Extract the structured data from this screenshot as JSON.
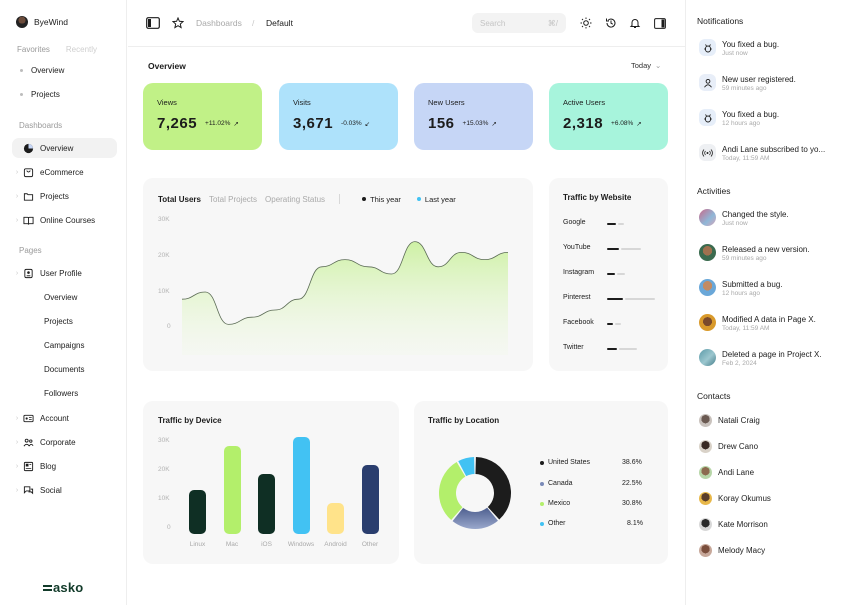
{
  "sidebar": {
    "brand": "ByeWind",
    "fav_tab_favorites": "Favorites",
    "fav_tab_recently": "Recently",
    "favorites": [
      "Overview",
      "Projects"
    ],
    "dashboards_title": "Dashboards",
    "dashboards": [
      "Overview",
      "eCommerce",
      "Projects",
      "Online Courses"
    ],
    "pages_title": "Pages",
    "user_profile": "User Profile",
    "user_profile_sub": [
      "Overview",
      "Projects",
      "Campaigns",
      "Documents",
      "Followers"
    ],
    "pages": [
      "Account",
      "Corporate",
      "Blog",
      "Social"
    ],
    "logo": "asko"
  },
  "header": {
    "crumb_root": "Dashboards",
    "crumb_sep": "/",
    "crumb_current": "Default",
    "search_placeholder": "Search",
    "search_shortcut": "⌘/"
  },
  "overview": {
    "title": "Overview",
    "range": "Today",
    "stats": [
      {
        "label": "Views",
        "value": "7,265",
        "change": "+11.02%",
        "color": "#c1f187"
      },
      {
        "label": "Visits",
        "value": "3,671",
        "change": "-0.03%",
        "color": "#aee2fb"
      },
      {
        "label": "New Users",
        "value": "156",
        "change": "+15.03%",
        "color": "#c6d6f6"
      },
      {
        "label": "Active Users",
        "value": "2,318",
        "change": "+6.08%",
        "color": "#a7f4dc"
      }
    ]
  },
  "total_users": {
    "tab_active": "Total Users",
    "tab_projects": "Total Projects",
    "tab_status": "Operating Status",
    "legend_this_year": "This year",
    "legend_last_year": "Last year",
    "y_ticks": [
      "30K",
      "20K",
      "10K",
      "0"
    ]
  },
  "traffic_website": {
    "title": "Traffic by Website",
    "sites": [
      "Google",
      "YouTube",
      "Instagram",
      "Pinterest",
      "Facebook",
      "Twitter"
    ]
  },
  "traffic_device": {
    "title": "Traffic by Device",
    "y_ticks": [
      "30K",
      "20K",
      "10K",
      "0"
    ]
  },
  "traffic_location": {
    "title": "Traffic by Location",
    "items": [
      {
        "name": "United States",
        "value": "38.6%",
        "color": "#1c1c1c"
      },
      {
        "name": "Canada",
        "value": "22.5%",
        "color": "#7a8ab8"
      },
      {
        "name": "Mexico",
        "value": "30.8%",
        "color": "#b3ef6b"
      },
      {
        "name": "Other",
        "value": "8.1%",
        "color": "#42c2f3"
      }
    ]
  },
  "chart_data": [
    {
      "type": "line",
      "title": "Total Users",
      "ylim": [
        0,
        30000
      ],
      "grid": false,
      "legend": "top",
      "series": [
        {
          "name": "This year",
          "values": [
            8000,
            10000,
            1000,
            3000,
            5000,
            8000,
            17000,
            19000,
            17000,
            15000,
            24000,
            17000,
            21000,
            19000,
            21000
          ]
        }
      ]
    },
    {
      "type": "bar",
      "title": "Traffic by Device",
      "categories": [
        "Linux",
        "Mac",
        "iOS",
        "Windows",
        "Android",
        "Other"
      ],
      "values": [
        14000,
        28000,
        19000,
        31000,
        10000,
        22000
      ],
      "colors": [
        "#0f2f24",
        "#b3ef6b",
        "#0f2f24",
        "#42c2f3",
        "#ffe38a",
        "#2a3e6e"
      ],
      "ylim": [
        0,
        30000
      ]
    },
    {
      "type": "pie",
      "title": "Traffic by Location",
      "categories": [
        "United States",
        "Canada",
        "Mexico",
        "Other"
      ],
      "values": [
        38.6,
        22.5,
        30.8,
        8.1
      ]
    }
  ],
  "notifications": {
    "title": "Notifications",
    "items": [
      {
        "text": "You fixed a bug.",
        "time": "Just now",
        "icon": "bug-icon"
      },
      {
        "text": "New user registered.",
        "time": "59 minutes ago",
        "icon": "user-icon"
      },
      {
        "text": "You fixed a bug.",
        "time": "12 hours ago",
        "icon": "bug-icon"
      },
      {
        "text": "Andi Lane subscribed to yo...",
        "time": "Today, 11:59 AM",
        "icon": "broadcast-icon"
      }
    ]
  },
  "activities": {
    "title": "Activities",
    "items": [
      {
        "text": "Changed the style.",
        "time": "Just now"
      },
      {
        "text": "Released a new version.",
        "time": "59 minutes ago"
      },
      {
        "text": "Submitted a bug.",
        "time": "12 hours ago"
      },
      {
        "text": "Modified A data in Page X.",
        "time": "Today, 11:59 AM"
      },
      {
        "text": "Deleted a page in Project X.",
        "time": "Feb 2, 2024"
      }
    ]
  },
  "contacts": {
    "title": "Contacts",
    "items": [
      "Natali Craig",
      "Drew Cano",
      "Andi Lane",
      "Koray Okumus",
      "Kate Morrison",
      "Melody Macy"
    ]
  }
}
